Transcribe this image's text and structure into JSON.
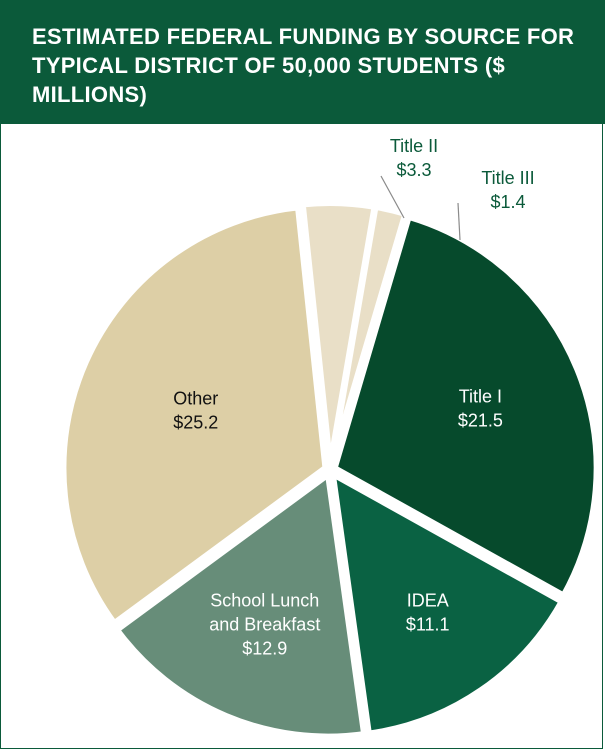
{
  "chart_data": {
    "type": "pie",
    "title": "ESTIMATED FEDERAL FUNDING BY SOURCE FOR TYPICAL DISTRICT OF 50,000 STUDENTS ($ MILLIONS)",
    "slices": [
      {
        "name": "Title II",
        "value": 3.3,
        "value_label": "$3.3",
        "color": "#e9dfc7",
        "label_color": "#0b5a3a",
        "outside": true
      },
      {
        "name": "Title III",
        "value": 1.4,
        "value_label": "$1.4",
        "color": "#e9dfc7",
        "label_color": "#0b5a3a",
        "outside": true
      },
      {
        "name": "Title I",
        "value": 21.5,
        "value_label": "$21.5",
        "color": "#064a2c",
        "label_color": "#ffffff"
      },
      {
        "name": "IDEA",
        "value": 11.1,
        "value_label": "$11.1",
        "color": "#0a6243",
        "label_color": "#ffffff"
      },
      {
        "name": "School Lunch and Breakfast",
        "name_lines": [
          "School Lunch",
          "and Breakfast"
        ],
        "value": 12.9,
        "value_label": "$12.9",
        "color": "#678d79",
        "label_color": "#ffffff"
      },
      {
        "name": "Other",
        "value": 25.2,
        "value_label": "$25.2",
        "color": "#ddcfa6",
        "label_color": "#111111"
      }
    ]
  }
}
